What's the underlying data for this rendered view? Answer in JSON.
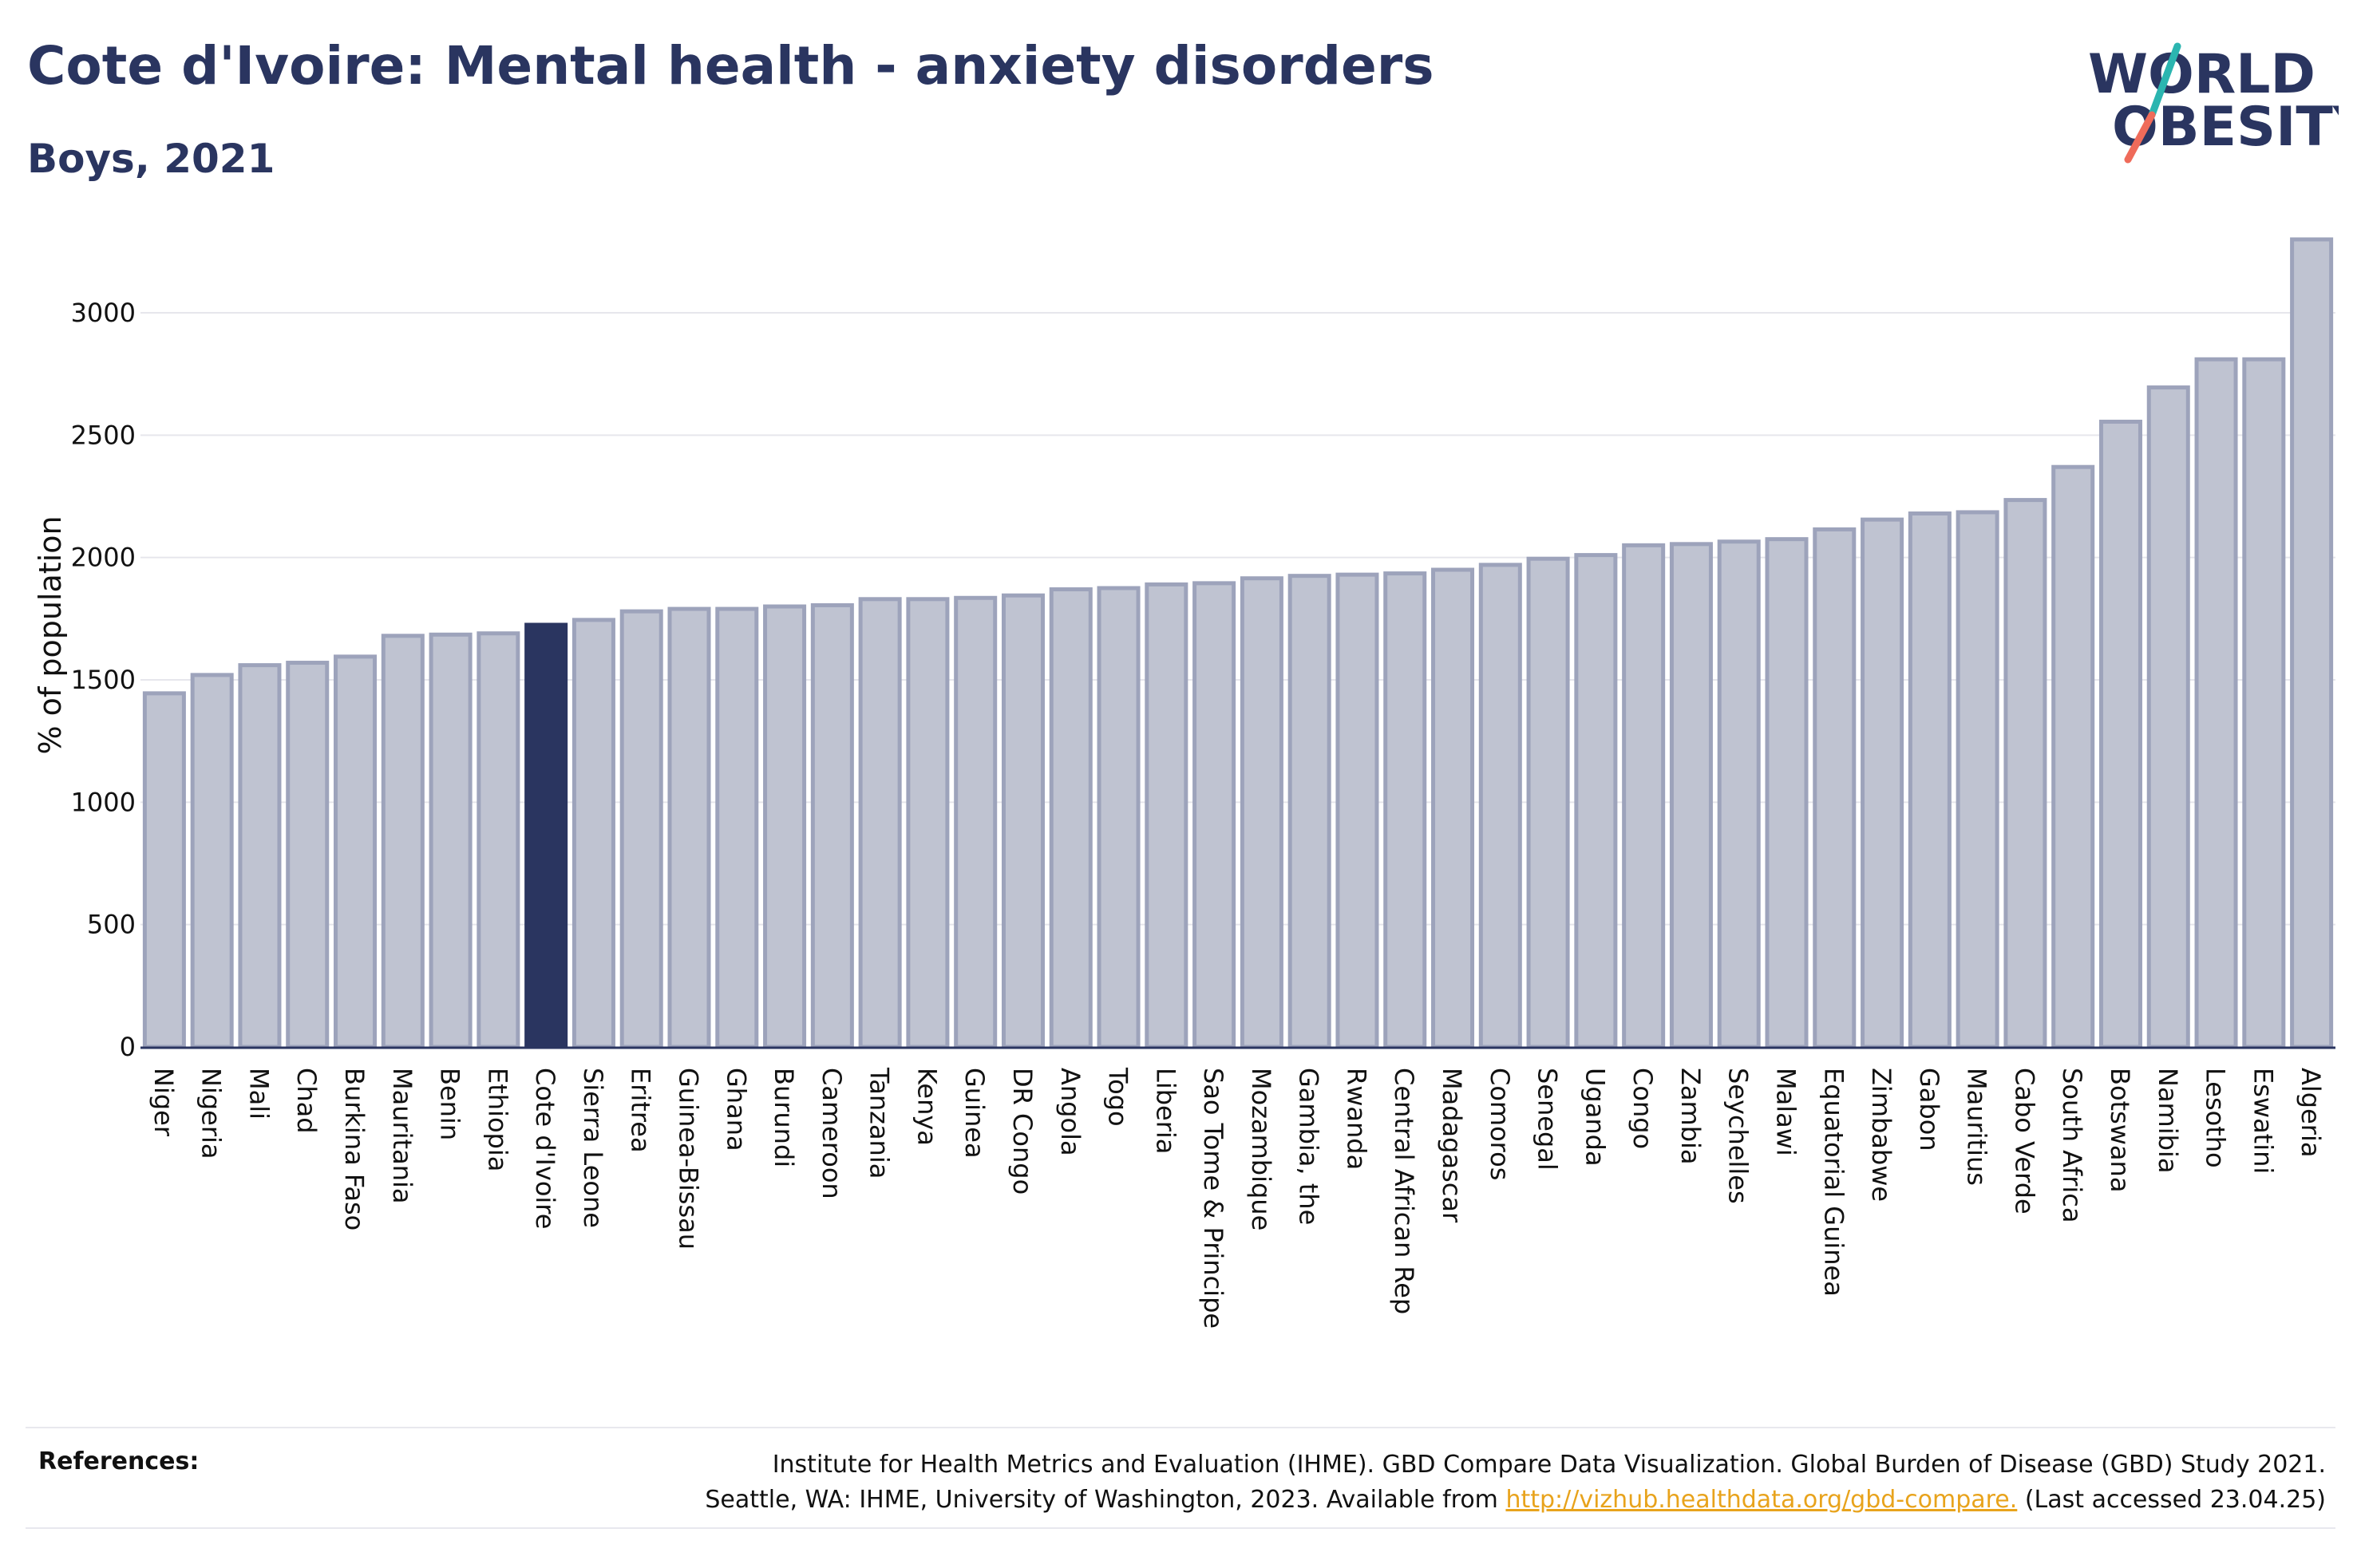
{
  "header": {
    "title": "Cote d'Ivoire: Mental health - anxiety disorders",
    "subtitle": "Boys, 2021"
  },
  "logo": {
    "line1": "WORLD",
    "line2": "OBESITY"
  },
  "references": {
    "label": "References:",
    "line1": "Institute for Health Metrics and Evaluation (IHME). GBD Compare Data Visualization. Global Burden of Disease (GBD) Study 2021.",
    "line2_before": "Seattle, WA: IHME, University of Washington, 2023. Available from ",
    "link": "http://vizhub.healthdata.org/gbd-compare.",
    "line2_after": " (Last accessed 23.04.25)"
  },
  "colors": {
    "highlight": "#2a3560",
    "bar_fill": "#bfc3d1",
    "bar_stroke": "#9da3bb",
    "grid": "#e6e6ec",
    "link": "#e8a31c"
  },
  "chart_data": {
    "type": "bar",
    "ylabel": "% of population",
    "xlabel": "",
    "ylim": [
      0,
      3300
    ],
    "yticks": [
      0,
      500,
      1000,
      1500,
      2000,
      2500,
      3000
    ],
    "grid": true,
    "highlight": "Cote d'Ivoire",
    "categories": [
      "Niger",
      "Nigeria",
      "Mali",
      "Chad",
      "Burkina Faso",
      "Mauritania",
      "Benin",
      "Ethiopia",
      "Cote d'Ivoire",
      "Sierra Leone",
      "Eritrea",
      "Guinea-Bissau",
      "Ghana",
      "Burundi",
      "Cameroon",
      "Tanzania",
      "Kenya",
      "Guinea",
      "DR Congo",
      "Angola",
      "Togo",
      "Liberia",
      "Sao Tome & Principe",
      "Mozambique",
      "Gambia, the",
      "Rwanda",
      "Central African Rep",
      "Madagascar",
      "Comoros",
      "Senegal",
      "Uganda",
      "Congo",
      "Zambia",
      "Seychelles",
      "Malawi",
      "Equatorial Guinea",
      "Zimbabwe",
      "Gabon",
      "Mauritius",
      "Cabo Verde",
      "South Africa",
      "Botswana",
      "Namibia",
      "Lesotho",
      "Eswatini",
      "Algeria"
    ],
    "values": [
      1445,
      1520,
      1560,
      1570,
      1595,
      1680,
      1685,
      1690,
      1725,
      1745,
      1780,
      1790,
      1790,
      1800,
      1805,
      1830,
      1830,
      1835,
      1845,
      1870,
      1875,
      1890,
      1895,
      1915,
      1925,
      1930,
      1935,
      1950,
      1970,
      1995,
      2010,
      2050,
      2055,
      2065,
      2075,
      2115,
      2155,
      2180,
      2185,
      2235,
      2370,
      2555,
      2695,
      2810,
      2810,
      3300
    ]
  }
}
